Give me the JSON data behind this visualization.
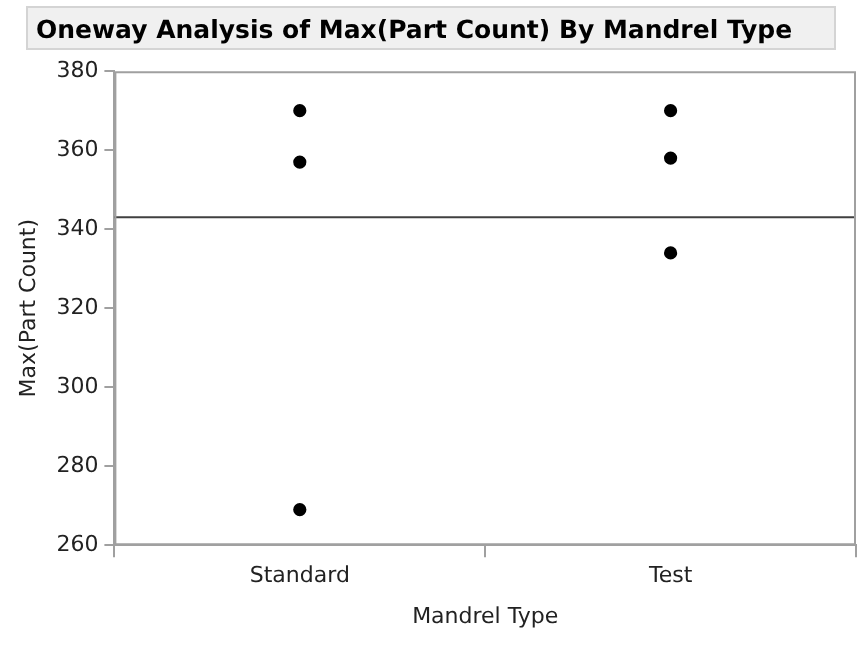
{
  "chart_data": {
    "type": "scatter",
    "title": "Oneway Analysis of Max(Part Count) By Mandrel Type",
    "xlabel": "Mandrel Type",
    "ylabel": "Max(Part Count)",
    "categories": [
      "Standard",
      "Test"
    ],
    "series": [
      {
        "color": "#000000",
        "x": [
          "Standard",
          "Standard",
          "Standard",
          "Test",
          "Test",
          "Test"
        ],
        "values": [
          370,
          357,
          269,
          370,
          358,
          334
        ]
      }
    ],
    "ylim": [
      260,
      380
    ],
    "yticks": [
      260,
      280,
      300,
      320,
      340,
      360,
      380
    ],
    "ref_lines": [
      {
        "axis": "y",
        "value": 343,
        "color": "#404040"
      }
    ],
    "grid": false,
    "legend": false,
    "marker": "circle"
  }
}
